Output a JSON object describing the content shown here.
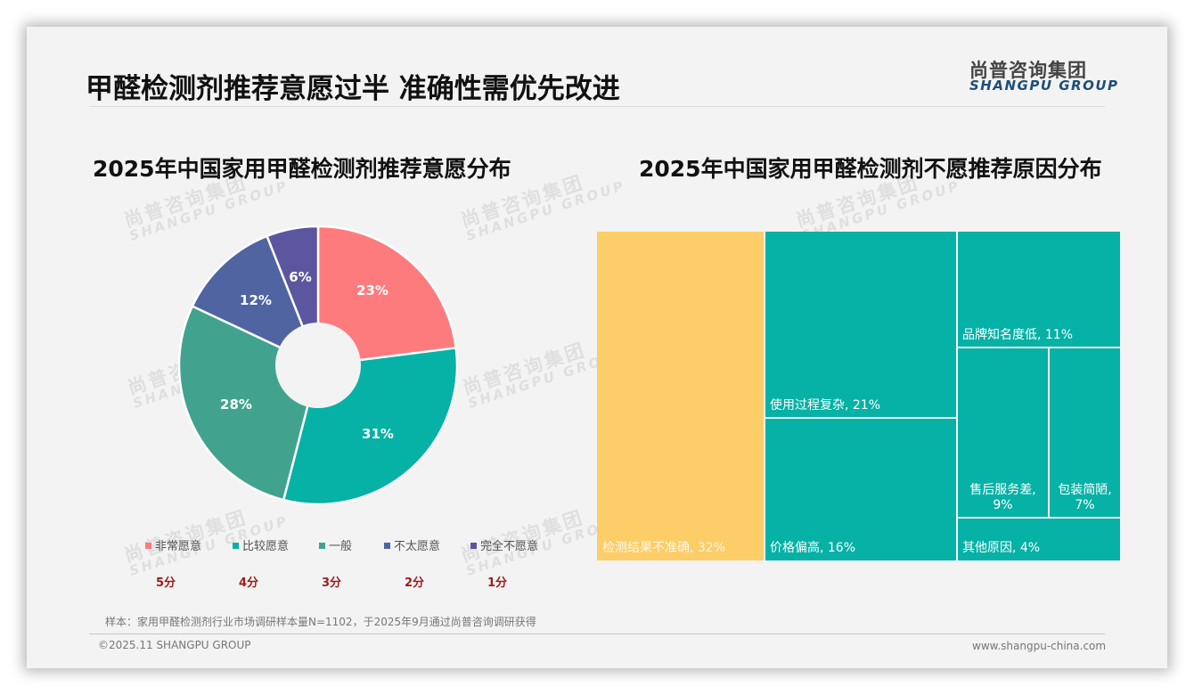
{
  "header": {
    "title": "甲醛检测剂推荐意愿过半 准确性需优先改进",
    "logo_cn": "尚普咨询集团",
    "logo_en": "SHANGPU GROUP"
  },
  "watermark": {
    "cn": "尚普咨询集团",
    "en": "SHANGPU GROUP"
  },
  "left_chart": {
    "title": "2025年中国家用甲醛检测剂推荐意愿分布"
  },
  "right_chart": {
    "title": "2025年中国家用甲醛检测剂不愿推荐原因分布"
  },
  "chart_data": [
    {
      "type": "pie",
      "subtype": "donut",
      "title": "2025年中国家用甲醛检测剂推荐意愿分布",
      "categories": [
        "非常愿意",
        "比较愿意",
        "一般",
        "不太愿意",
        "完全不愿意"
      ],
      "values": [
        23,
        31,
        28,
        12,
        6
      ],
      "labels": [
        "23%",
        "31%",
        "28%",
        "12%",
        "6%"
      ],
      "scores": [
        "5分",
        "4分",
        "3分",
        "2分",
        "1分"
      ],
      "colors": [
        "#fe7b7d",
        "#06b1a6",
        "#41a38e",
        "#4f64a0",
        "#5c56a0"
      ],
      "legend_position": "bottom",
      "start_angle": "12 o'clock, clockwise"
    },
    {
      "type": "treemap",
      "title": "2025年中国家用甲醛检测剂不愿推荐原因分布",
      "categories": [
        "检测结果不准确",
        "使用过程复杂",
        "价格偏高",
        "品牌知名度低",
        "售后服务差",
        "包装简陋",
        "其他原因"
      ],
      "values": [
        32,
        21,
        16,
        11,
        9,
        7,
        4
      ],
      "labels": [
        "检测结果不准确, 32%",
        "使用过程复杂, 21%",
        "价格偏高, 16%",
        "品牌知名度低, 11%",
        "售后服务差,\n9%",
        "包装简陋,\n7%",
        "其他原因, 4%"
      ],
      "colors": [
        "#fdcd67",
        "#06b1a6",
        "#06b1a6",
        "#06b1a6",
        "#06b1a6",
        "#06b1a6",
        "#06b1a6"
      ]
    }
  ],
  "legend": [
    {
      "label": "非常愿意",
      "color": "#fe7b7d",
      "score": "5分"
    },
    {
      "label": "比较愿意",
      "color": "#06b1a6",
      "score": "4分"
    },
    {
      "label": "一般",
      "color": "#41a38e",
      "score": "3分"
    },
    {
      "label": "不太愿意",
      "color": "#4f64a0",
      "score": "2分"
    },
    {
      "label": "完全不愿意",
      "color": "#5c56a0",
      "score": "1分"
    }
  ],
  "donut_labels": [
    "23%",
    "31%",
    "28%",
    "12%",
    "6%"
  ],
  "treemap": {
    "t1": {
      "name": "检测结果不准确",
      "pct": "32%",
      "label": "检测结果不准确, 32%"
    },
    "t2": {
      "name": "使用过程复杂",
      "pct": "21%",
      "label": "使用过程复杂, 21%"
    },
    "t3": {
      "name": "价格偏高",
      "pct": "16%",
      "label": "价格偏高, 16%"
    },
    "t4": {
      "name": "品牌知名度低",
      "pct": "11%",
      "label": "品牌知名度低, 11%"
    },
    "t5": {
      "name": "售后服务差",
      "line1": "售后服务差,",
      "line2": "9%"
    },
    "t6": {
      "name": "包装简陋",
      "line1": "包装简陋,",
      "line2": "7%"
    },
    "t7": {
      "name": "其他原因",
      "pct": "4%",
      "label": "其他原因, 4%"
    }
  },
  "footer": {
    "note": "样本：家用甲醛检测剂行业市场调研样本量N=1102，于2025年9月通过尚普咨询调研获得",
    "copyright": "©2025.11 SHANGPU GROUP",
    "website": "www.shangpu-china.com"
  }
}
